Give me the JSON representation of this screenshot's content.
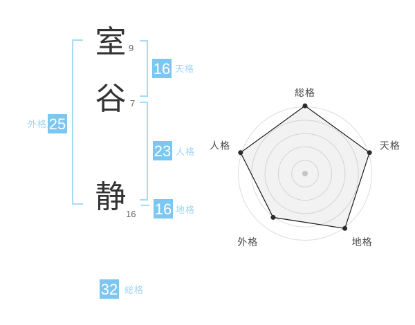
{
  "name_panel": {
    "characters": [
      {
        "char": "室",
        "strokes": "9"
      },
      {
        "char": "谷",
        "strokes": "7"
      },
      {
        "char": "静",
        "strokes": "16"
      }
    ],
    "badges": {
      "tenkaku": {
        "value": "16",
        "label": "天格"
      },
      "jinkaku": {
        "value": "23",
        "label": "人格"
      },
      "chikaku": {
        "value": "16",
        "label": "地格"
      },
      "gaikaku": {
        "value": "25",
        "label": "外格"
      },
      "soukaku": {
        "value": "32",
        "label": "総格"
      }
    }
  },
  "chart_data": {
    "type": "radar",
    "categories": [
      "総格",
      "天格",
      "地格",
      "外格",
      "人格"
    ],
    "values": [
      5,
      5,
      5,
      4,
      5
    ],
    "max": 5,
    "rings": 5,
    "start_angle_deg": -90,
    "direction": "clockwise",
    "grid": "circular-rings",
    "legend": "none",
    "title": ""
  },
  "colors": {
    "badge_bg": "#7cc7f1",
    "badge_text": "#ffffff",
    "label_blue": "#a0d5f6",
    "bracket_blue": "#a5daf8",
    "char_text": "#333333",
    "stroke_number": "#666666",
    "radar_label": "#4a4a4a",
    "radar_ring": "#dcdcdc",
    "radar_line": "#1a1a1a",
    "radar_fill": "rgba(130,130,130,0.1)",
    "radar_point": "#2b2b2b",
    "radar_center_dot": "#c4c4c4"
  }
}
